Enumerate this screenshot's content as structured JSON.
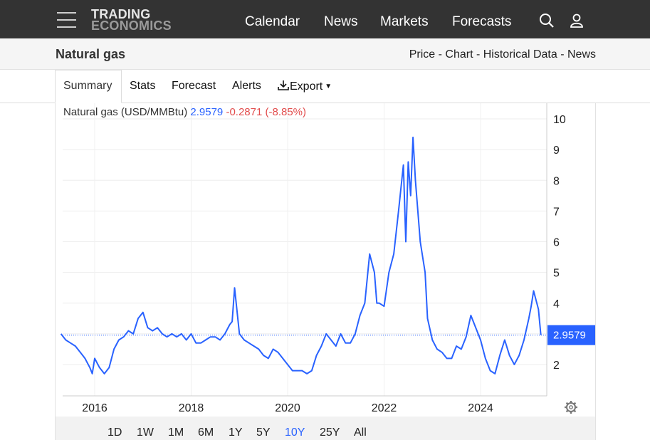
{
  "header": {
    "logo_line1": "TRADING",
    "logo_line2": "ECONOMICS",
    "nav": [
      "Calendar",
      "News",
      "Markets",
      "Forecasts"
    ],
    "icons": [
      "menu-icon",
      "search-icon",
      "user-icon"
    ]
  },
  "subheader": {
    "title": "Natural gas",
    "links": [
      "Price",
      "Chart",
      "Historical Data",
      "News"
    ],
    "separator": " - "
  },
  "tabs": [
    "Summary",
    "Stats",
    "Forecast",
    "Alerts",
    "Export"
  ],
  "legend": {
    "name": "Natural gas (USD/MMBtu)",
    "value": "2.9579",
    "change": "-0.2871 (-8.85%)"
  },
  "ranges": [
    "1D",
    "1W",
    "1M",
    "6M",
    "1Y",
    "5Y",
    "10Y",
    "25Y",
    "All"
  ],
  "active_range": "10Y",
  "colors": {
    "line": "#2962ff",
    "change": "#e24c4c",
    "topbar": "#333333"
  },
  "chart_data": {
    "type": "line",
    "title": "",
    "xlabel": "",
    "ylabel": "",
    "x_ticks": [
      "2016",
      "2018",
      "2020",
      "2022",
      "2024"
    ],
    "y_ticks": [
      2,
      3,
      4,
      5,
      6,
      7,
      8,
      9,
      10
    ],
    "ylim": [
      1,
      10
    ],
    "xlim": [
      2015.3,
      2025.3
    ],
    "last_value_label": "2.9579",
    "last_value": 2.9579,
    "grid": true,
    "series": [
      {
        "x": [
          2015.3,
          2015.4,
          2015.5,
          2015.6,
          2015.7,
          2015.8,
          2015.9,
          2015.95,
          2016.0,
          2016.1,
          2016.2,
          2016.3,
          2016.4,
          2016.5,
          2016.6,
          2016.7,
          2016.8,
          2016.9,
          2017.0,
          2017.1,
          2017.2,
          2017.3,
          2017.4,
          2017.5,
          2017.6,
          2017.7,
          2017.8,
          2017.9,
          2018.0,
          2018.1,
          2018.2,
          2018.3,
          2018.4,
          2018.5,
          2018.6,
          2018.7,
          2018.8,
          2018.85,
          2018.9,
          2019.0,
          2019.1,
          2019.2,
          2019.3,
          2019.4,
          2019.5,
          2019.6,
          2019.7,
          2019.8,
          2019.9,
          2020.0,
          2020.1,
          2020.2,
          2020.3,
          2020.4,
          2020.5,
          2020.6,
          2020.7,
          2020.8,
          2020.9,
          2021.0,
          2021.1,
          2021.2,
          2021.3,
          2021.4,
          2021.5,
          2021.6,
          2021.7,
          2021.8,
          2021.85,
          2021.9,
          2022.0,
          2022.1,
          2022.2,
          2022.3,
          2022.4,
          2022.45,
          2022.5,
          2022.55,
          2022.6,
          2022.65,
          2022.7,
          2022.75,
          2022.8,
          2022.85,
          2022.9,
          2023.0,
          2023.1,
          2023.2,
          2023.3,
          2023.4,
          2023.5,
          2023.6,
          2023.7,
          2023.8,
          2023.9,
          2024.0,
          2024.1,
          2024.2,
          2024.3,
          2024.4,
          2024.5,
          2024.6,
          2024.7,
          2024.8,
          2024.9,
          2025.0,
          2025.05,
          2025.1,
          2025.2,
          2025.25
        ],
        "y": [
          3.0,
          2.8,
          2.7,
          2.6,
          2.4,
          2.2,
          1.9,
          1.7,
          2.2,
          1.9,
          1.7,
          1.9,
          2.5,
          2.8,
          2.9,
          3.1,
          3.0,
          3.5,
          3.7,
          3.2,
          3.1,
          3.2,
          3.0,
          2.9,
          3.0,
          2.9,
          3.0,
          2.8,
          3.0,
          2.7,
          2.7,
          2.8,
          2.9,
          2.9,
          2.8,
          3.0,
          3.3,
          3.4,
          4.5,
          3.0,
          2.8,
          2.7,
          2.6,
          2.5,
          2.3,
          2.2,
          2.5,
          2.4,
          2.2,
          2.0,
          1.8,
          1.8,
          1.8,
          1.7,
          1.8,
          2.3,
          2.6,
          3.0,
          2.8,
          2.6,
          3.0,
          2.7,
          2.7,
          3.0,
          3.6,
          4.0,
          5.6,
          5.0,
          4.0,
          4.0,
          3.9,
          5.0,
          5.6,
          7.0,
          8.5,
          6.0,
          8.6,
          7.5,
          9.4,
          8.0,
          7.0,
          6.0,
          5.5,
          5.0,
          3.5,
          2.8,
          2.5,
          2.4,
          2.2,
          2.2,
          2.6,
          2.5,
          2.9,
          3.6,
          3.2,
          2.8,
          2.2,
          1.8,
          1.7,
          2.3,
          2.8,
          2.3,
          2.0,
          2.3,
          2.8,
          3.5,
          3.9,
          4.4,
          3.8,
          2.9579
        ]
      }
    ]
  }
}
